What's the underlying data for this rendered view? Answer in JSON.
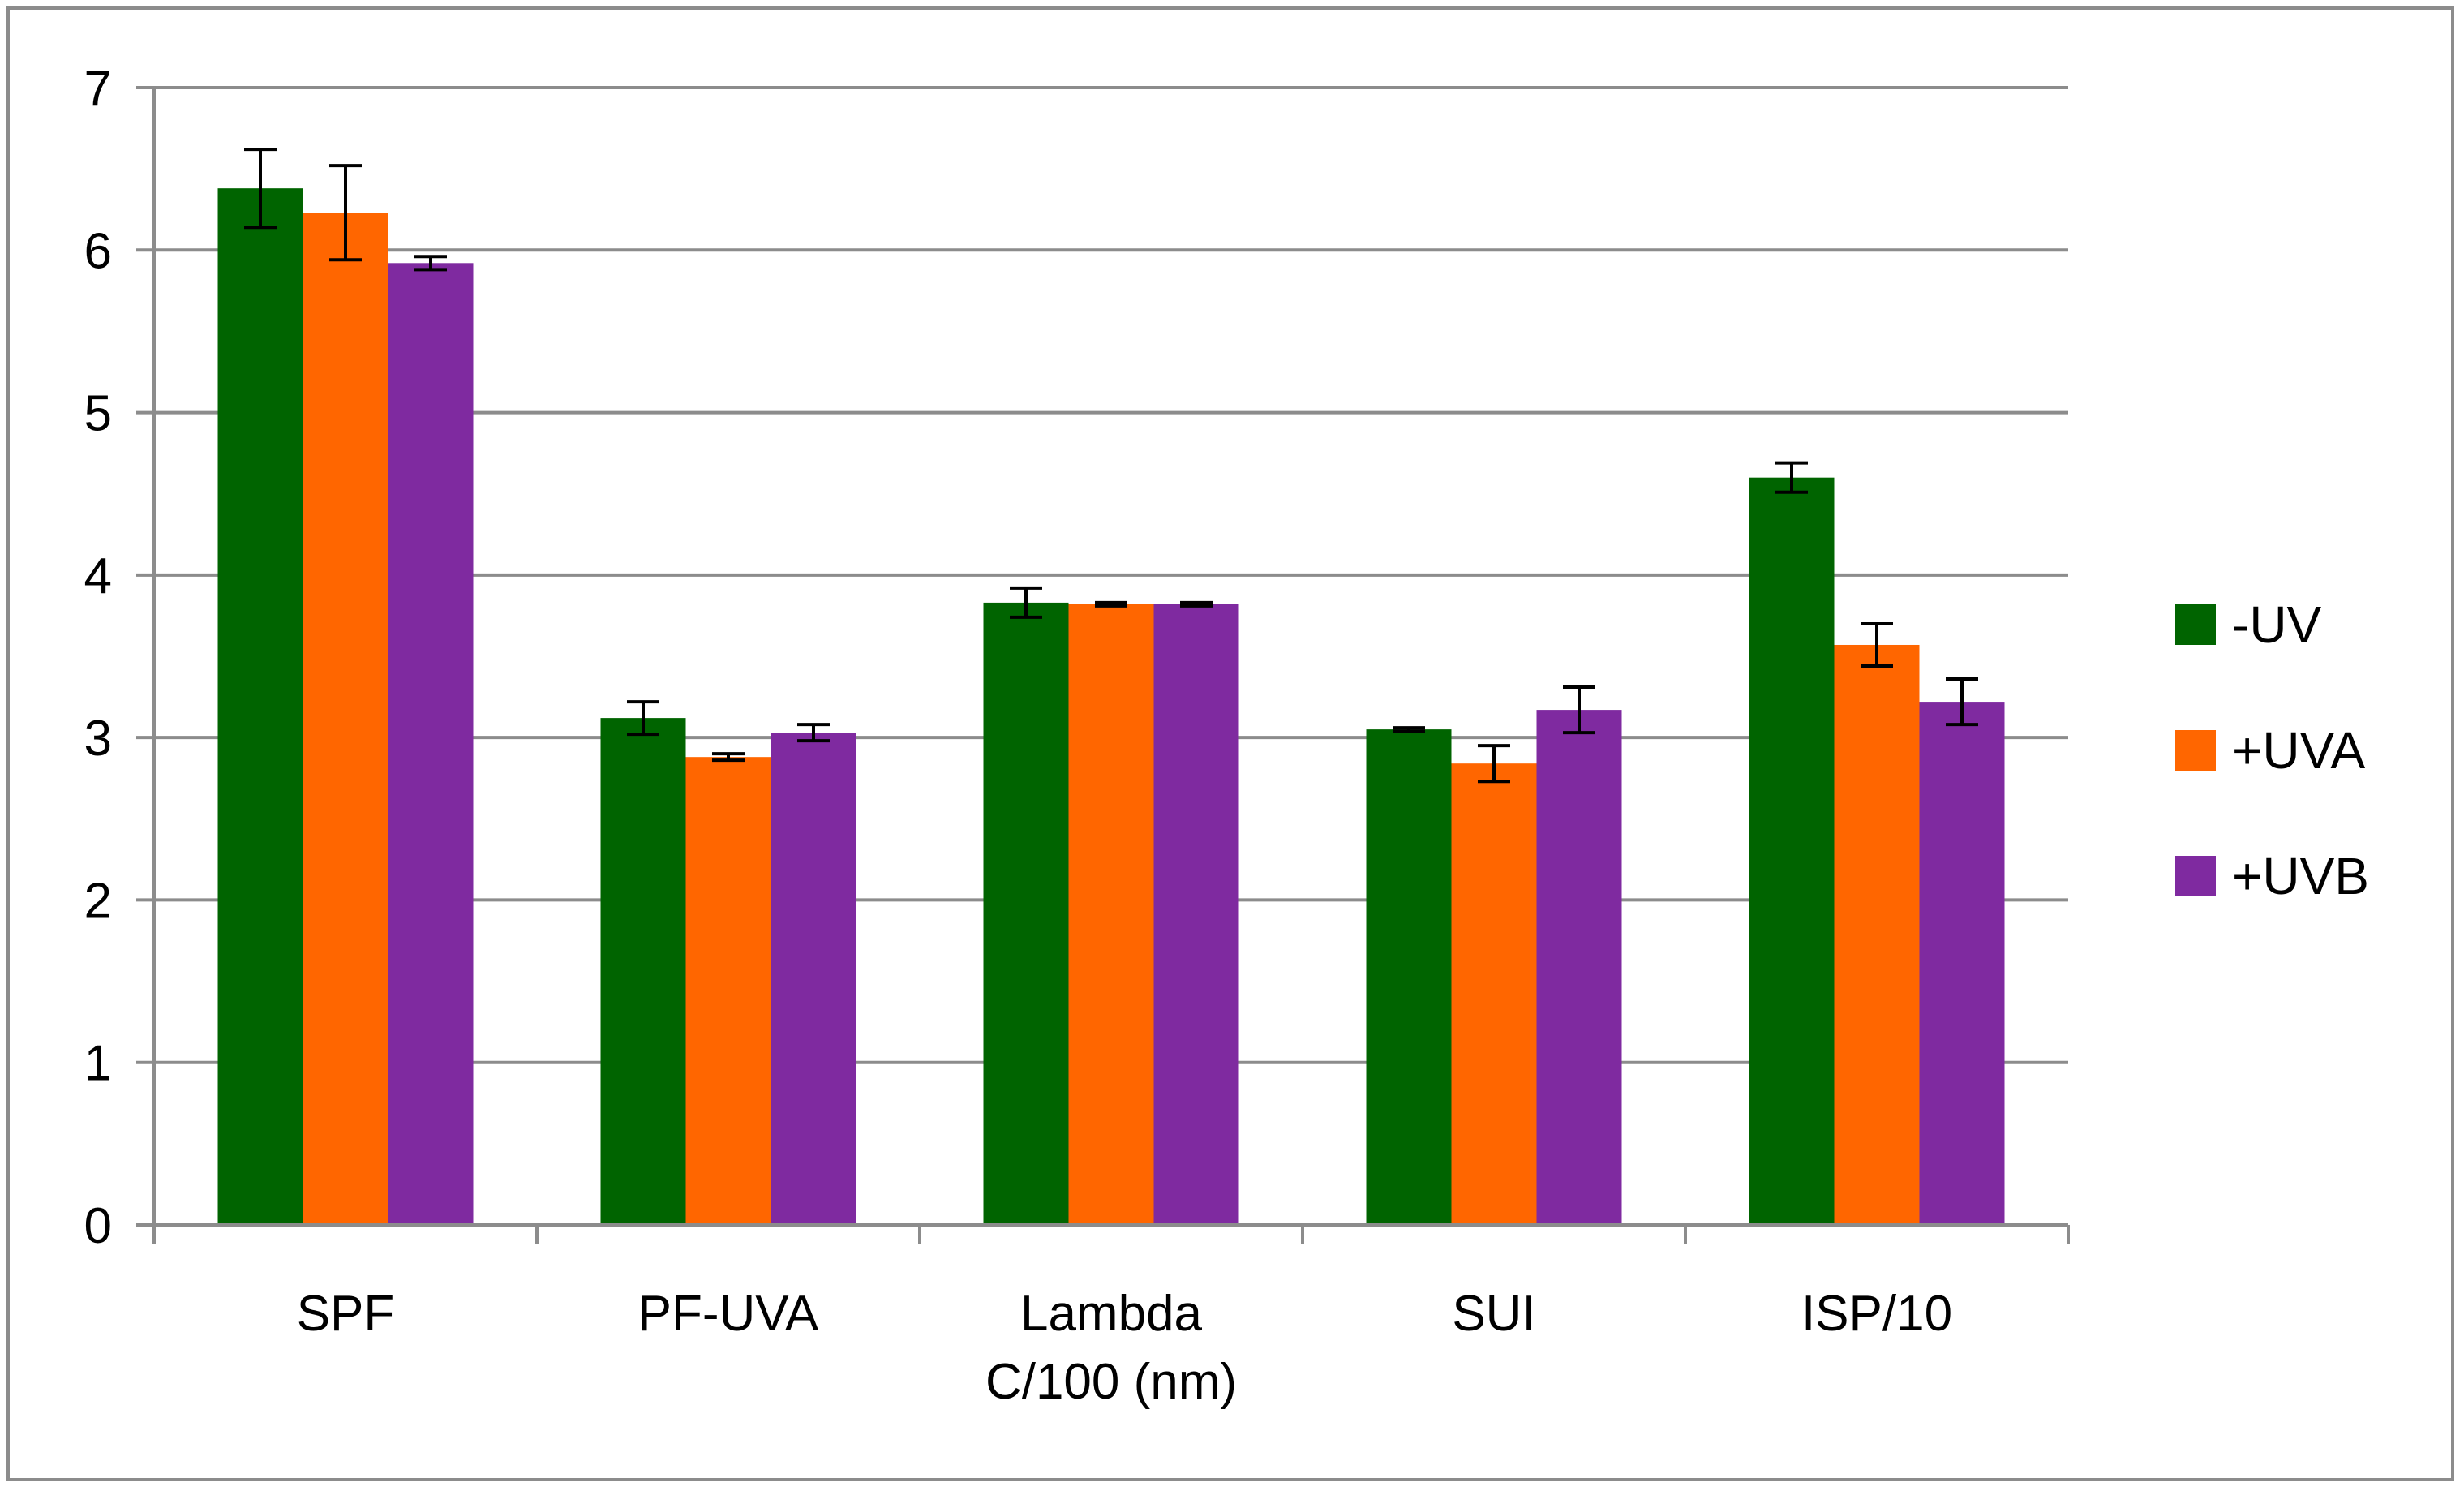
{
  "chart_data": {
    "type": "bar",
    "title": "",
    "xlabel": "",
    "ylabel": "",
    "ylim": [
      0,
      7
    ],
    "yticks": [
      "0",
      "1",
      "2",
      "3",
      "4",
      "5",
      "6",
      "7"
    ],
    "grid": true,
    "legend_position": "right",
    "categories": [
      "SPF",
      "PF-UVA",
      "Lambda C/100 (nm)",
      "SUI",
      "ISP/10"
    ],
    "category_lines": [
      [
        "SPF"
      ],
      [
        "PF-UVA"
      ],
      [
        "Lambda",
        "C/100 (nm)"
      ],
      [
        "SUI"
      ],
      [
        "ISP/10"
      ]
    ],
    "series": [
      {
        "name": "-UV",
        "color": "#006400",
        "values": [
          6.38,
          3.12,
          3.83,
          3.05,
          4.6
        ],
        "errors": [
          0.24,
          0.1,
          0.09,
          0.01,
          0.09
        ]
      },
      {
        "name": "+UVA",
        "color": "#ff6600",
        "values": [
          6.23,
          2.88,
          3.82,
          2.84,
          3.57
        ],
        "errors": [
          0.29,
          0.02,
          0.01,
          0.11,
          0.13
        ]
      },
      {
        "name": "+UVB",
        "color": "#7f2aa0",
        "values": [
          5.92,
          3.03,
          3.82,
          3.17,
          3.22
        ],
        "errors": [
          0.04,
          0.05,
          0.01,
          0.14,
          0.14
        ]
      }
    ]
  }
}
